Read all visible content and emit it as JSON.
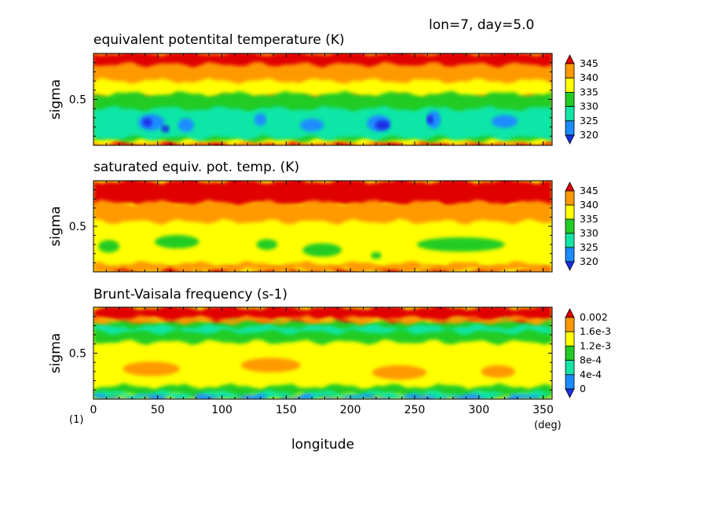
{
  "header": {
    "info": "lon=7, day=5.0"
  },
  "footer": {
    "note": "(1)",
    "unit": "(deg)",
    "xlabel": "longitude"
  },
  "chart_data": [
    {
      "type": "heatmap",
      "title": "equivalent potentital temperature (K)",
      "xlabel": "longitude",
      "ylabel": "sigma",
      "x_unit": "(deg)",
      "xlim": [
        0,
        357
      ],
      "ylim": [
        0,
        1
      ],
      "y_ticks": [
        "0.5"
      ],
      "colorbar_labels": [
        "345",
        "340",
        "335",
        "330",
        "325",
        "320"
      ],
      "colors": [
        "#e00000",
        "#ff9900",
        "#ffff00",
        "#22cc22",
        "#11e6a6",
        "#1a8cff",
        "#1a2ee6"
      ],
      "background_color": "#ff9900",
      "features": [
        {
          "level": "#e00000",
          "shape": "band",
          "y": [
            0.88,
            1.0
          ]
        },
        {
          "level": "#e00000",
          "shape": "band",
          "y": [
            0.0,
            0.03
          ]
        },
        {
          "level": "#ffff00",
          "shape": "band",
          "y": [
            0.53,
            0.7
          ]
        },
        {
          "level": "#ffff00",
          "shape": "band",
          "y": [
            0.03,
            0.12
          ]
        },
        {
          "level": "#22cc22",
          "shape": "band",
          "y": [
            0.06,
            0.56
          ]
        },
        {
          "level": "#11e6a6",
          "shape": "band",
          "y": [
            0.08,
            0.4
          ]
        },
        {
          "level": "#1a8cff",
          "shape": "blob",
          "x": 45,
          "y": 0.25,
          "w": 18,
          "h": 0.16
        },
        {
          "level": "#1a8cff",
          "shape": "blob",
          "x": 72,
          "y": 0.22,
          "w": 10,
          "h": 0.13
        },
        {
          "level": "#1a8cff",
          "shape": "blob",
          "x": 130,
          "y": 0.28,
          "w": 7,
          "h": 0.12
        },
        {
          "level": "#1a8cff",
          "shape": "blob",
          "x": 170,
          "y": 0.22,
          "w": 16,
          "h": 0.12
        },
        {
          "level": "#1a8cff",
          "shape": "blob",
          "x": 222,
          "y": 0.24,
          "w": 16,
          "h": 0.16
        },
        {
          "level": "#1a8cff",
          "shape": "blob",
          "x": 265,
          "y": 0.28,
          "w": 8,
          "h": 0.18
        },
        {
          "level": "#1a8cff",
          "shape": "blob",
          "x": 320,
          "y": 0.26,
          "w": 18,
          "h": 0.12
        },
        {
          "level": "#1a2ee6",
          "shape": "blob",
          "x": 42,
          "y": 0.25,
          "w": 5,
          "h": 0.08
        },
        {
          "level": "#1a2ee6",
          "shape": "blob",
          "x": 56,
          "y": 0.18,
          "w": 4,
          "h": 0.06
        },
        {
          "level": "#1a2ee6",
          "shape": "blob",
          "x": 225,
          "y": 0.22,
          "w": 9,
          "h": 0.09
        },
        {
          "level": "#1a2ee6",
          "shape": "blob",
          "x": 262,
          "y": 0.28,
          "w": 3,
          "h": 0.08
        }
      ]
    },
    {
      "type": "heatmap",
      "title": "saturated equiv. pot. temp. (K)",
      "xlabel": "longitude",
      "ylabel": "sigma",
      "x_unit": "(deg)",
      "xlim": [
        0,
        357
      ],
      "ylim": [
        0,
        1
      ],
      "y_ticks": [
        "0.5"
      ],
      "colorbar_labels": [
        "345",
        "340",
        "335",
        "330",
        "325",
        "320"
      ],
      "colors": [
        "#e00000",
        "#ff9900",
        "#ffff00",
        "#22cc22",
        "#11e6a6",
        "#1a8cff",
        "#1a2ee6"
      ],
      "background_color": "#ffff00",
      "features": [
        {
          "level": "#e00000",
          "shape": "band",
          "y": [
            0.73,
            1.0
          ]
        },
        {
          "level": "#e00000",
          "shape": "band",
          "y": [
            0.0,
            0.03
          ]
        },
        {
          "level": "#ff9900",
          "shape": "band",
          "y": [
            0.55,
            0.76
          ]
        },
        {
          "level": "#ff9900",
          "shape": "band",
          "y": [
            0.02,
            0.09
          ]
        },
        {
          "level": "#22cc22",
          "shape": "blob",
          "x": 12,
          "y": 0.28,
          "w": 14,
          "h": 0.12
        },
        {
          "level": "#22cc22",
          "shape": "blob",
          "x": 65,
          "y": 0.33,
          "w": 32,
          "h": 0.13
        },
        {
          "level": "#22cc22",
          "shape": "blob",
          "x": 135,
          "y": 0.3,
          "w": 14,
          "h": 0.1
        },
        {
          "level": "#22cc22",
          "shape": "blob",
          "x": 178,
          "y": 0.24,
          "w": 28,
          "h": 0.13
        },
        {
          "level": "#22cc22",
          "shape": "blob",
          "x": 286,
          "y": 0.3,
          "w": 66,
          "h": 0.14
        },
        {
          "level": "#22cc22",
          "shape": "blob",
          "x": 220,
          "y": 0.18,
          "w": 6,
          "h": 0.06
        }
      ]
    },
    {
      "type": "heatmap",
      "title": "Brunt-Vaisala frequency (s-1)",
      "xlabel": "longitude",
      "ylabel": "sigma",
      "x_unit": "(deg)",
      "xlim": [
        0,
        357
      ],
      "ylim": [
        0,
        1
      ],
      "y_ticks": [
        "0.5"
      ],
      "x_ticks": [
        0,
        50,
        100,
        150,
        200,
        250,
        300,
        350
      ],
      "colorbar_labels": [
        "0.002",
        "1.6e-3",
        "1.2e-3",
        "8e-4",
        "4e-4",
        "0"
      ],
      "colors": [
        "#e00000",
        "#ff9900",
        "#ffff00",
        "#22cc22",
        "#11e6a6",
        "#1a8cff",
        "#1a2ee6"
      ],
      "background_color": "#ffff00",
      "features": [
        {
          "level": "#22cc22",
          "shape": "band",
          "y": [
            0.62,
            0.86
          ]
        },
        {
          "level": "#e00000",
          "shape": "band",
          "y": [
            0.86,
            1.0
          ]
        },
        {
          "level": "#11e6a6",
          "shape": "band",
          "y": [
            0.73,
            0.79
          ]
        },
        {
          "level": "#ff9900",
          "shape": "band",
          "y": [
            0.84,
            0.88
          ]
        },
        {
          "level": "#ff9900",
          "shape": "blob",
          "x": 45,
          "y": 0.33,
          "w": 42,
          "h": 0.14
        },
        {
          "level": "#ff9900",
          "shape": "blob",
          "x": 138,
          "y": 0.37,
          "w": 44,
          "h": 0.14
        },
        {
          "level": "#ff9900",
          "shape": "blob",
          "x": 238,
          "y": 0.29,
          "w": 40,
          "h": 0.14
        },
        {
          "level": "#ff9900",
          "shape": "blob",
          "x": 315,
          "y": 0.3,
          "w": 24,
          "h": 0.12
        },
        {
          "level": "#22cc22",
          "shape": "band",
          "y": [
            0.04,
            0.14
          ]
        },
        {
          "level": "#11e6a6",
          "shape": "band",
          "y": [
            0.02,
            0.07
          ]
        },
        {
          "level": "#1a8cff",
          "shape": "band",
          "y": [
            0.0,
            0.03
          ]
        }
      ]
    }
  ]
}
